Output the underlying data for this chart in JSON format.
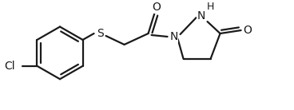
{
  "bg": "#ffffff",
  "lc": "#1a1a1a",
  "lw": 1.6,
  "figsize": [
    3.68,
    1.38
  ],
  "dpi": 100,
  "xlim": [
    0,
    368
  ],
  "ylim": [
    0,
    138
  ]
}
